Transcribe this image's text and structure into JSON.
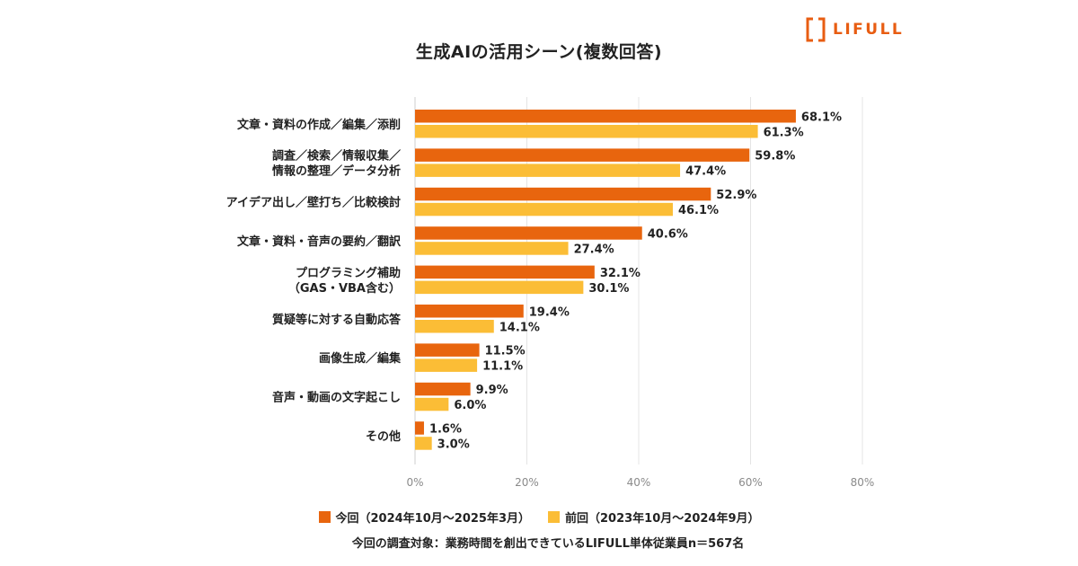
{
  "brand": {
    "name": "LIFULL",
    "color": "#e85d12"
  },
  "chart_data": {
    "type": "bar",
    "orientation": "horizontal",
    "title": "生成AIの活用シーン(複数回答)",
    "categories": [
      [
        "文章・資料の作成／編集／添削"
      ],
      [
        "調査／検索／情報収集／",
        "情報の整理／データ分析"
      ],
      [
        "アイデア出し／壁打ち／比較検討"
      ],
      [
        "文章・資料・音声の要約／翻訳"
      ],
      [
        "プログラミング補助",
        "（GAS・VBA含む）"
      ],
      [
        "質疑等に対する自動応答"
      ],
      [
        "画像生成／編集"
      ],
      [
        "音声・動画の文字起こし"
      ],
      [
        "その他"
      ]
    ],
    "series": [
      {
        "name": "今回（2024年10月〜2025年3月）",
        "color": "#e8650e",
        "values": [
          68.1,
          59.8,
          52.9,
          40.6,
          32.1,
          19.4,
          11.5,
          9.9,
          1.6
        ]
      },
      {
        "name": "前回（2023年10月〜2024年9月）",
        "color": "#fbbd36",
        "values": [
          61.3,
          47.4,
          46.1,
          27.4,
          30.1,
          14.1,
          11.1,
          6.0,
          3.0
        ]
      }
    ],
    "xlim": [
      0,
      80
    ],
    "ticks": [
      0,
      20,
      40,
      60,
      80
    ],
    "tick_suffix": "%",
    "grid": true,
    "legend_position": "bottom-center"
  },
  "note": "今回の調査対象：業務時間を創出できているLIFULL単体従業員n＝567名"
}
